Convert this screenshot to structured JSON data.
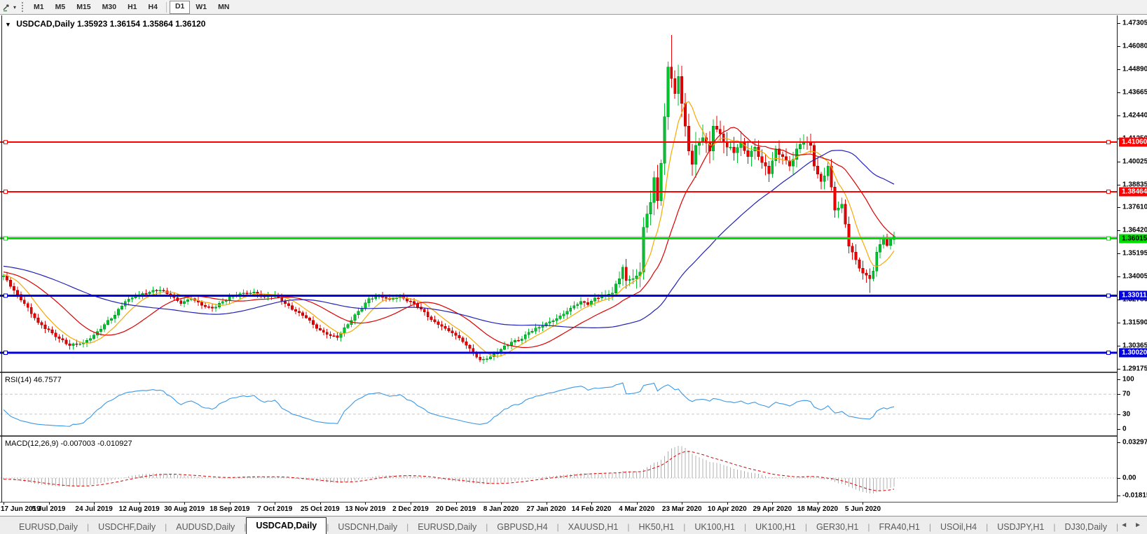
{
  "toolbar": {
    "timeframes": [
      "M1",
      "M5",
      "M15",
      "M30",
      "H1",
      "H4",
      "D1",
      "W1",
      "MN"
    ],
    "selected": "D1"
  },
  "chart": {
    "title_symbol": "USDCAD,Daily",
    "title_ohlc": "1.35923 1.36154 1.35864 1.36120",
    "triangle_glyph": "▼"
  },
  "chart_data": {
    "type": "candlestick",
    "symbol": "USDCAD",
    "period": "Daily",
    "ohlc_display": {
      "open": "1.35923",
      "high": "1.36154",
      "low": "1.35864",
      "close": "1.36120"
    },
    "price_scale": {
      "top": 1.47305,
      "bottom": 1.29175
    },
    "price_axis_ticks": [
      "1.47305",
      "1.46080",
      "1.44890",
      "1.43665",
      "1.42440",
      "1.41250",
      "1.40025",
      "1.38835",
      "1.37610",
      "1.36420",
      "1.35195",
      "1.34005",
      "1.32780",
      "1.31590",
      "1.30365",
      "1.29175"
    ],
    "time_axis_ticks": [
      "17 Jun 2019",
      "5 Jul 2019",
      "24 Jul 2019",
      "12 Aug 2019",
      "30 Aug 2019",
      "18 Sep 2019",
      "7 Oct 2019",
      "25 Oct 2019",
      "13 Nov 2019",
      "2 Dec 2019",
      "20 Dec 2019",
      "8 Jan 2020",
      "27 Jan 2020",
      "14 Feb 2020",
      "4 Mar 2020",
      "23 Mar 2020",
      "10 Apr 2020",
      "29 Apr 2020",
      "18 May 2020",
      "5 Jun 2020"
    ],
    "n_candles": 257,
    "up_color": "#00c32e",
    "down_color": "#e80202",
    "close_anchors": [
      [
        0,
        1.3405
      ],
      [
        3,
        1.333
      ],
      [
        6,
        1.326
      ],
      [
        10,
        1.316
      ],
      [
        14,
        1.3105
      ],
      [
        19,
        1.304
      ],
      [
        23,
        1.3052
      ],
      [
        26,
        1.3095
      ],
      [
        29,
        1.315
      ],
      [
        32,
        1.32
      ],
      [
        35,
        1.327
      ],
      [
        38,
        1.33
      ],
      [
        42,
        1.332
      ],
      [
        45,
        1.333
      ],
      [
        48,
        1.3305
      ],
      [
        51,
        1.326
      ],
      [
        54,
        1.3285
      ],
      [
        57,
        1.325
      ],
      [
        60,
        1.3235
      ],
      [
        63,
        1.327
      ],
      [
        66,
        1.33
      ],
      [
        69,
        1.3315
      ],
      [
        72,
        1.332
      ],
      [
        75,
        1.3295
      ],
      [
        78,
        1.3305
      ],
      [
        81,
        1.326
      ],
      [
        84,
        1.322
      ],
      [
        87,
        1.3185
      ],
      [
        90,
        1.313
      ],
      [
        93,
        1.3098
      ],
      [
        96,
        1.3082
      ],
      [
        99,
        1.315
      ],
      [
        102,
        1.322
      ],
      [
        105,
        1.3285
      ],
      [
        108,
        1.33
      ],
      [
        111,
        1.3282
      ],
      [
        114,
        1.3298
      ],
      [
        117,
        1.327
      ],
      [
        120,
        1.323
      ],
      [
        122,
        1.319
      ],
      [
        124,
        1.3165
      ],
      [
        126,
        1.314
      ],
      [
        129,
        1.3105
      ],
      [
        132,
        1.306
      ],
      [
        135,
        1.3
      ],
      [
        137,
        1.2965
      ],
      [
        140,
        1.298
      ],
      [
        143,
        1.302
      ],
      [
        146,
        1.3058
      ],
      [
        149,
        1.3075
      ],
      [
        151,
        1.311
      ],
      [
        154,
        1.3135
      ],
      [
        157,
        1.3165
      ],
      [
        160,
        1.3195
      ],
      [
        163,
        1.3235
      ],
      [
        166,
        1.327
      ],
      [
        168,
        1.3255
      ],
      [
        170,
        1.329
      ],
      [
        173,
        1.3305
      ],
      [
        175,
        1.3315
      ],
      [
        177,
        1.339
      ],
      [
        178,
        1.345
      ],
      [
        179,
        1.338
      ],
      [
        181,
        1.339
      ],
      [
        183,
        1.3425
      ],
      [
        184,
        1.366
      ],
      [
        185,
        1.373
      ],
      [
        186,
        1.379
      ],
      [
        187,
        1.392
      ],
      [
        188,
        1.38
      ],
      [
        189,
        1.3995
      ],
      [
        190,
        1.424
      ],
      [
        191,
        1.45
      ],
      [
        192,
        1.444
      ],
      [
        193,
        1.436
      ],
      [
        194,
        1.445
      ],
      [
        195,
        1.431
      ],
      [
        196,
        1.419
      ],
      [
        197,
        1.406
      ],
      [
        198,
        1.399
      ],
      [
        199,
        1.409
      ],
      [
        201,
        1.413
      ],
      [
        203,
        1.406
      ],
      [
        204,
        1.419
      ],
      [
        206,
        1.415
      ],
      [
        208,
        1.408
      ],
      [
        210,
        1.405
      ],
      [
        212,
        1.411
      ],
      [
        214,
        1.403
      ],
      [
        216,
        1.408
      ],
      [
        218,
        1.4
      ],
      [
        220,
        1.394
      ],
      [
        222,
        1.407
      ],
      [
        224,
        1.403
      ],
      [
        226,
        1.398
      ],
      [
        228,
        1.407
      ],
      [
        230,
        1.411
      ],
      [
        232,
        1.409
      ],
      [
        233,
        1.398
      ],
      [
        235,
        1.39
      ],
      [
        237,
        1.398
      ],
      [
        239,
        1.375
      ],
      [
        241,
        1.378
      ],
      [
        243,
        1.356
      ],
      [
        245,
        1.349
      ],
      [
        247,
        1.342
      ],
      [
        249,
        1.339
      ],
      [
        250,
        1.343
      ],
      [
        251,
        1.353
      ],
      [
        252,
        1.357
      ],
      [
        253,
        1.36
      ],
      [
        254,
        1.3565
      ],
      [
        255,
        1.3595
      ],
      [
        256,
        1.3612
      ]
    ],
    "pre_anchors": [
      [
        -60,
        1.352
      ],
      [
        -40,
        1.3475
      ],
      [
        -20,
        1.3448
      ],
      [
        -10,
        1.3425
      ]
    ],
    "vol_anchors": [
      [
        -60,
        0.0045
      ],
      [
        0,
        0.0045
      ],
      [
        60,
        0.004
      ],
      [
        120,
        0.0042
      ],
      [
        150,
        0.0045
      ],
      [
        170,
        0.005
      ],
      [
        178,
        0.008
      ],
      [
        184,
        0.013
      ],
      [
        196,
        0.015
      ],
      [
        210,
        0.011
      ],
      [
        225,
        0.009
      ],
      [
        240,
        0.0085
      ],
      [
        248,
        0.008
      ],
      [
        256,
        0.005
      ]
    ],
    "wick_overrides": {
      "19": {
        "low": 1.3018
      },
      "137": {
        "low": 1.2952
      },
      "178": {
        "high": 1.3465
      },
      "192": {
        "high": 1.4669
      },
      "249": {
        "low": 1.3315
      }
    },
    "horizontal_lines": [
      {
        "label": "1.41060",
        "value": 1.4106,
        "color": "#ff0000",
        "width": 2,
        "badge_text": "#ffffff"
      },
      {
        "label": "1.38464",
        "value": 1.38464,
        "color": "#ff0000",
        "width": 2,
        "badge_text": "#ffffff"
      },
      {
        "label": "1.36015",
        "value": 1.36015,
        "color": "#00dd00",
        "width": 3,
        "badge_text": "#000000"
      },
      {
        "label": "1.33011",
        "value": 1.33011,
        "color": "#0000e0",
        "width": 3,
        "badge_text": "#ffffff"
      },
      {
        "label": "1.30020",
        "value": 1.3002,
        "color": "#0000e0",
        "width": 3,
        "badge_text": "#ffffff"
      }
    ],
    "last_price_line": {
      "value": 1.3612,
      "color": "#b4b4b4"
    },
    "moving_averages": [
      {
        "period": 8,
        "color": "#f7a800"
      },
      {
        "period": 21,
        "color": "#dd0000"
      },
      {
        "period": 55,
        "color": "#2121b8"
      }
    ],
    "rsi": {
      "label": "RSI(14)",
      "display_value": "46.7577",
      "period": 14,
      "levels": [
        100,
        70,
        30,
        0
      ],
      "color": "#3a98e8"
    },
    "macd": {
      "label": "MACD(12,26,9)",
      "display_values": "-0.007003 -0.010927",
      "fast": 12,
      "slow": 26,
      "signal_period": 9,
      "axis_ticks": [
        "0.032972",
        "0.00",
        "-0.018154"
      ],
      "axis_values": [
        0.032972,
        0.0,
        -0.018154
      ],
      "histogram_color": "#b0b0b0",
      "signal_color": "#dd0000"
    }
  },
  "tabs": {
    "items": [
      {
        "label": "EURUSD,Daily",
        "active": false
      },
      {
        "label": "USDCHF,Daily",
        "active": false
      },
      {
        "label": "AUDUSD,Daily",
        "active": false
      },
      {
        "label": "USDCAD,Daily",
        "active": true
      },
      {
        "label": "USDCNH,Daily",
        "active": false
      },
      {
        "label": "EURUSD,Daily",
        "active": false
      },
      {
        "label": "GBPUSD,H4",
        "active": false
      },
      {
        "label": "XAUUSD,H1",
        "active": false
      },
      {
        "label": "HK50,H1",
        "active": false
      },
      {
        "label": "UK100,H1",
        "active": false
      },
      {
        "label": "UK100,H1",
        "active": false
      },
      {
        "label": "GER30,H1",
        "active": false
      },
      {
        "label": "FRA40,H1",
        "active": false
      },
      {
        "label": "USOil,H4",
        "active": false
      },
      {
        "label": "USDJPY,H1",
        "active": false
      },
      {
        "label": "DJ30,Daily",
        "active": false
      }
    ],
    "nav_left": "◄",
    "nav_right": "►"
  }
}
